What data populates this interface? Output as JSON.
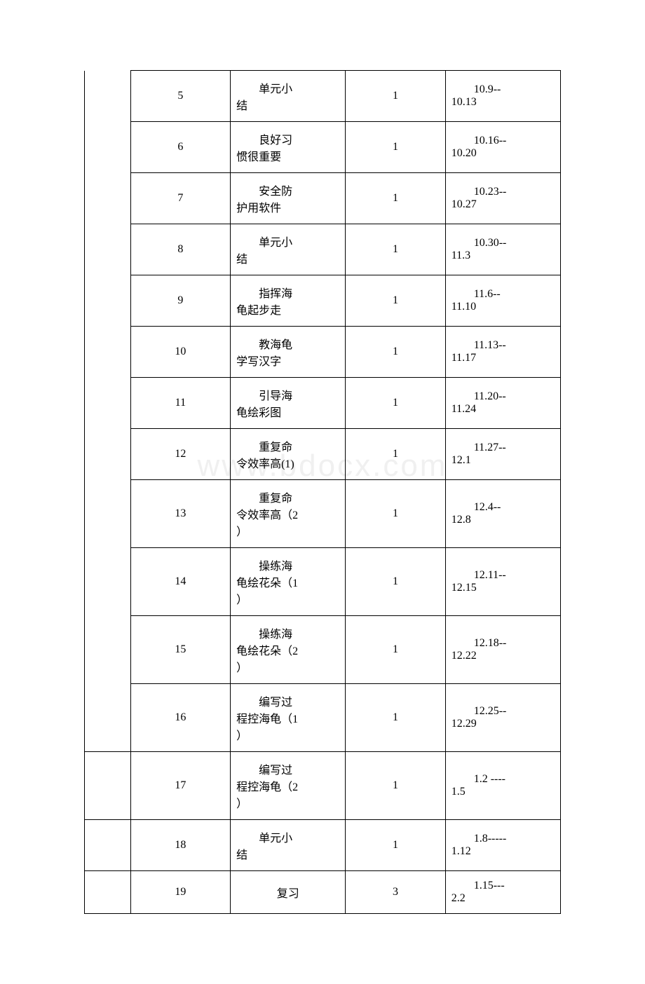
{
  "watermark_text": "www.bdocx.com",
  "table": {
    "columns": [
      "empty",
      "num",
      "content",
      "count",
      "date"
    ],
    "rows": [
      {
        "num": "5",
        "content_line1": "单元小",
        "content_line2": "结",
        "count": "1",
        "date_line1": "10.9--",
        "date_line2": "10.13",
        "first_col_rowspan": 12,
        "first_col_style": "no-top"
      },
      {
        "num": "6",
        "content_line1": "良好习",
        "content_line2": "惯很重要",
        "count": "1",
        "date_line1": "10.16--",
        "date_line2": "10.20"
      },
      {
        "num": "7",
        "content_line1": "安全防",
        "content_line2": "护用软件",
        "count": "1",
        "date_line1": "10.23--",
        "date_line2": "10.27"
      },
      {
        "num": "8",
        "content_line1": "单元小",
        "content_line2": "结",
        "count": "1",
        "date_line1": "10.30--",
        "date_line2": "11.3"
      },
      {
        "num": "9",
        "content_line1": "指挥海",
        "content_line2": "龟起步走",
        "count": "1",
        "date_line1": "11.6--",
        "date_line2": "11.10"
      },
      {
        "num": "10",
        "content_line1": "教海龟",
        "content_line2": "学写汉字",
        "count": "1",
        "date_line1": "11.13--",
        "date_line2": "11.17"
      },
      {
        "num": "11",
        "content_line1": "引导海",
        "content_line2": "龟绘彩图",
        "count": "1",
        "date_line1": "11.20--",
        "date_line2": "11.24"
      },
      {
        "num": "12",
        "content_line1": "重复命",
        "content_line2": "令效率高(1)",
        "count": "1",
        "date_line1": "11.27--",
        "date_line2": "12.1"
      },
      {
        "num": "13",
        "content_line1": "重复命",
        "content_line2": "令效率高（2",
        "content_line3": "）",
        "count": "1",
        "date_line1": "12.4--",
        "date_line2": "12.8"
      },
      {
        "num": "14",
        "content_line1": "操练海",
        "content_line2": "龟绘花朵（1",
        "content_line3": "）",
        "count": "1",
        "date_line1": "12.11--",
        "date_line2": "12.15"
      },
      {
        "num": "15",
        "content_line1": "操练海",
        "content_line2": "龟绘花朵（2",
        "content_line3": "）",
        "count": "1",
        "date_line1": "12.18--",
        "date_line2": "12.22"
      },
      {
        "num": "16",
        "content_line1": "编写过",
        "content_line2": "程控海龟（1",
        "content_line3": "）",
        "count": "1",
        "date_line1": "12.25--",
        "date_line2": "12.29"
      },
      {
        "num": "17",
        "content_line1": "编写过",
        "content_line2": "程控海龟（2",
        "content_line3": "）",
        "count": "1",
        "date_line1": "1.2 ----",
        "date_line2": "1.5",
        "has_first_col": true
      },
      {
        "num": "18",
        "content_line1": "单元小",
        "content_line2": "结",
        "count": "1",
        "date_line1": "1.8-----",
        "date_line2": "1.12",
        "has_first_col": true
      },
      {
        "num": "19",
        "content_single": "复习",
        "count": "3",
        "date_line1": "1.15---",
        "date_line2": "2.2",
        "has_first_col": true
      }
    ]
  }
}
